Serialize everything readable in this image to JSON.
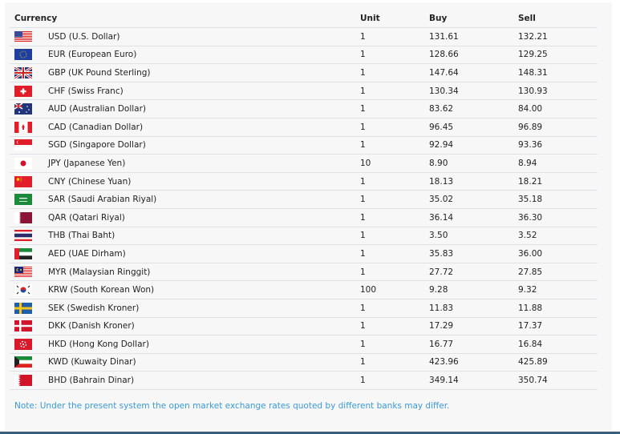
{
  "table": {
    "headers": [
      "Currency",
      "Unit",
      "Buy",
      "Sell"
    ],
    "rows": [
      {
        "flag": "us",
        "currency": "USD (U.S. Dollar)",
        "unit": "1",
        "buy": "131.61",
        "sell": "132.21"
      },
      {
        "flag": "eu",
        "currency": "EUR (European Euro)",
        "unit": "1",
        "buy": "128.66",
        "sell": "129.25"
      },
      {
        "flag": "gb",
        "currency": "GBP (UK Pound Sterling)",
        "unit": "1",
        "buy": "147.64",
        "sell": "148.31"
      },
      {
        "flag": "ch",
        "currency": "CHF (Swiss Franc)",
        "unit": "1",
        "buy": "130.34",
        "sell": "130.93"
      },
      {
        "flag": "au",
        "currency": "AUD (Australian Dollar)",
        "unit": "1",
        "buy": "83.62",
        "sell": "84.00"
      },
      {
        "flag": "ca",
        "currency": "CAD (Canadian Dollar)",
        "unit": "1",
        "buy": "96.45",
        "sell": "96.89"
      },
      {
        "flag": "sg",
        "currency": "SGD (Singapore Dollar)",
        "unit": "1",
        "buy": "92.94",
        "sell": "93.36"
      },
      {
        "flag": "jp",
        "currency": "JPY (Japanese Yen)",
        "unit": "10",
        "buy": "8.90",
        "sell": "8.94"
      },
      {
        "flag": "cn",
        "currency": "CNY (Chinese Yuan)",
        "unit": "1",
        "buy": "18.13",
        "sell": "18.21"
      },
      {
        "flag": "sa",
        "currency": "SAR (Saudi Arabian Riyal)",
        "unit": "1",
        "buy": "35.02",
        "sell": "35.18"
      },
      {
        "flag": "qa",
        "currency": "QAR (Qatari Riyal)",
        "unit": "1",
        "buy": "36.14",
        "sell": "36.30"
      },
      {
        "flag": "th",
        "currency": "THB (Thai Baht)",
        "unit": "1",
        "buy": "3.50",
        "sell": "3.52"
      },
      {
        "flag": "ae",
        "currency": "AED (UAE Dirham)",
        "unit": "1",
        "buy": "35.83",
        "sell": "36.00"
      },
      {
        "flag": "my",
        "currency": "MYR (Malaysian Ringgit)",
        "unit": "1",
        "buy": "27.72",
        "sell": "27.85"
      },
      {
        "flag": "kr",
        "currency": "KRW (South Korean Won)",
        "unit": "100",
        "buy": "9.28",
        "sell": "9.32"
      },
      {
        "flag": "se",
        "currency": "SEK (Swedish Kroner)",
        "unit": "1",
        "buy": "11.83",
        "sell": "11.88"
      },
      {
        "flag": "dk",
        "currency": "DKK (Danish Kroner)",
        "unit": "1",
        "buy": "17.29",
        "sell": "17.37"
      },
      {
        "flag": "hk",
        "currency": "HKD (Hong Kong Dollar)",
        "unit": "1",
        "buy": "16.77",
        "sell": "16.84"
      },
      {
        "flag": "kw",
        "currency": "KWD (Kuwaity Dinar)",
        "unit": "1",
        "buy": "423.96",
        "sell": "425.89"
      },
      {
        "flag": "bh",
        "currency": "BHD (Bahrain Dinar)",
        "unit": "1",
        "buy": "349.14",
        "sell": "350.74"
      }
    ]
  },
  "note": "Note: Under the present system the open market exchange rates quoted by different banks may differ.",
  "colors": {
    "note": "#3a9ad9",
    "border": "#dde1e8",
    "background": "#f7f7f7"
  }
}
